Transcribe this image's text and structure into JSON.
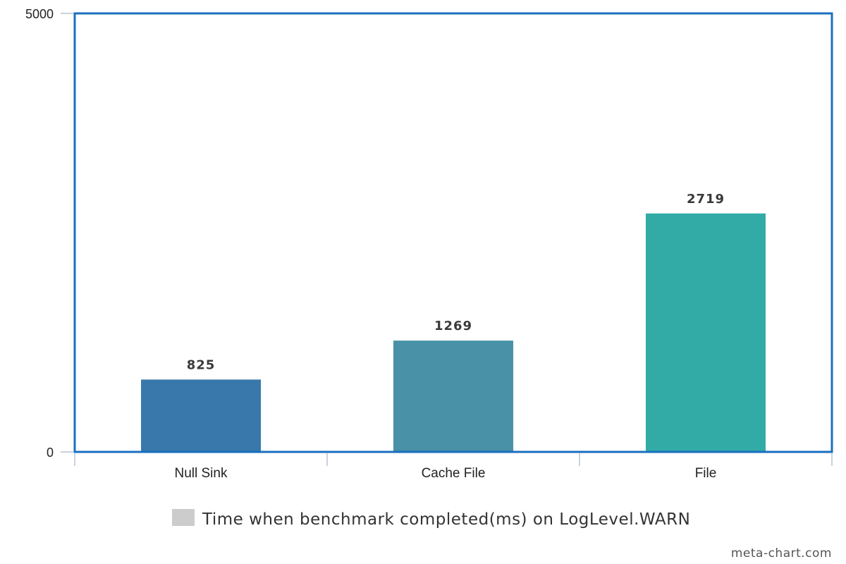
{
  "chart_data": {
    "type": "bar",
    "categories": [
      "Null Sink",
      "Cache File",
      "File"
    ],
    "series": [
      {
        "name": "Time when benchmark completed(ms) on LogLevel.WARN",
        "values": [
          825,
          1269,
          2719
        ]
      }
    ],
    "bar_colors": [
      "#3878ab",
      "#4891a6",
      "#32aba6"
    ],
    "ylim": [
      0,
      5000
    ],
    "y_tick_labels": [
      "5000",
      "0"
    ],
    "data_labels": [
      "825",
      "1269",
      "2719"
    ],
    "legend_position": "bottom",
    "legend_swatch_color": "#cccccc",
    "frame_color": "#1a6fbf",
    "grid": false
  },
  "watermark": "meta-chart.com"
}
